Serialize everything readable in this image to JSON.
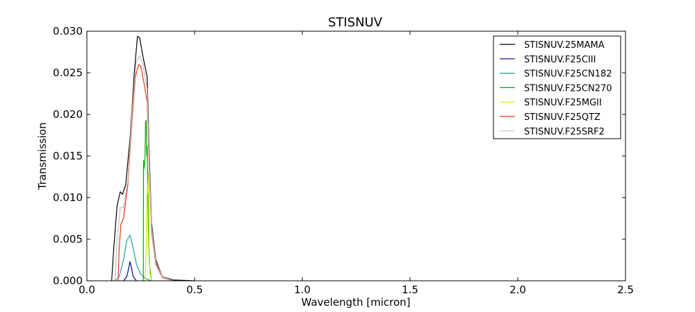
{
  "chart_data": {
    "type": "line",
    "title": "STISNUV",
    "xlabel": "Wavelength [micron]",
    "ylabel": "Transmission",
    "xlim": [
      0.0,
      2.5
    ],
    "ylim": [
      0.0,
      0.03
    ],
    "x_ticks": [
      "0.0",
      "0.5",
      "1.0",
      "1.5",
      "2.0",
      "2.5"
    ],
    "y_ticks": [
      "0.000",
      "0.005",
      "0.010",
      "0.015",
      "0.020",
      "0.025",
      "0.030"
    ],
    "grid": false,
    "legend_position": "top-right",
    "series": [
      {
        "name": "STISNUV.25MAMA",
        "color": "#000000",
        "points": [
          [
            0.115,
            0
          ],
          [
            0.125,
            0.004
          ],
          [
            0.14,
            0.009
          ],
          [
            0.155,
            0.0107
          ],
          [
            0.165,
            0.0104
          ],
          [
            0.18,
            0.0115
          ],
          [
            0.2,
            0.017
          ],
          [
            0.22,
            0.025
          ],
          [
            0.235,
            0.0294
          ],
          [
            0.245,
            0.0292
          ],
          [
            0.26,
            0.027
          ],
          [
            0.28,
            0.0245
          ],
          [
            0.29,
            0.015
          ],
          [
            0.3,
            0.007
          ],
          [
            0.32,
            0.0025
          ],
          [
            0.35,
            0.0005
          ],
          [
            0.4,
            0.0001
          ],
          [
            0.5,
            0
          ]
        ]
      },
      {
        "name": "STISNUV.F25CIII",
        "color": "#000099",
        "points": [
          [
            0.17,
            0
          ],
          [
            0.185,
            0.0005
          ],
          [
            0.195,
            0.0016
          ],
          [
            0.2,
            0.0023
          ],
          [
            0.205,
            0.0018
          ],
          [
            0.215,
            0.0005
          ],
          [
            0.23,
            0
          ]
        ]
      },
      {
        "name": "STISNUV.F25CN182",
        "color": "#1aa3a3",
        "points": [
          [
            0.13,
            0
          ],
          [
            0.15,
            0.0005
          ],
          [
            0.17,
            0.0025
          ],
          [
            0.185,
            0.0048
          ],
          [
            0.2,
            0.0055
          ],
          [
            0.21,
            0.0045
          ],
          [
            0.23,
            0.002
          ],
          [
            0.25,
            0.0008
          ],
          [
            0.27,
            0.0003
          ],
          [
            0.3,
            0
          ]
        ]
      },
      {
        "name": "STISNUV.F25CN270",
        "color": "#00aa00",
        "points": [
          [
            0.258,
            0
          ],
          [
            0.262,
            0
          ],
          [
            0.263,
            0.0145
          ],
          [
            0.266,
            0.0135
          ],
          [
            0.27,
            0.0148
          ],
          [
            0.272,
            0.019
          ],
          [
            0.275,
            0.0193
          ],
          [
            0.278,
            0.015
          ],
          [
            0.28,
            0.0162
          ],
          [
            0.282,
            0.013
          ],
          [
            0.285,
            0.007
          ],
          [
            0.29,
            0.002
          ],
          [
            0.3,
            0
          ]
        ]
      },
      {
        "name": "STISNUV.F25MGII",
        "color": "#ccee00",
        "points": [
          [
            0.27,
            0
          ],
          [
            0.276,
            0.004
          ],
          [
            0.28,
            0.011
          ],
          [
            0.283,
            0.0105
          ],
          [
            0.286,
            0.013
          ],
          [
            0.289,
            0.0045
          ],
          [
            0.292,
            0.001
          ],
          [
            0.3,
            0
          ]
        ]
      },
      {
        "name": "STISNUV.F25QTZ",
        "color": "#e83a1a",
        "points": [
          [
            0.145,
            0
          ],
          [
            0.15,
            0.004
          ],
          [
            0.158,
            0.0068
          ],
          [
            0.17,
            0.0075
          ],
          [
            0.19,
            0.0115
          ],
          [
            0.21,
            0.0195
          ],
          [
            0.225,
            0.0245
          ],
          [
            0.24,
            0.026
          ],
          [
            0.25,
            0.0258
          ],
          [
            0.265,
            0.0238
          ],
          [
            0.28,
            0.0215
          ],
          [
            0.29,
            0.013
          ],
          [
            0.3,
            0.006
          ],
          [
            0.32,
            0.002
          ],
          [
            0.35,
            0.0004
          ],
          [
            0.4,
            0
          ]
        ]
      },
      {
        "name": "STISNUV.F25SRF2",
        "color": "#c0c0c0",
        "points": [
          [
            0.13,
            0
          ],
          [
            0.14,
            0.005
          ],
          [
            0.155,
            0.0088
          ],
          [
            0.17,
            0.0088
          ],
          [
            0.19,
            0.012
          ],
          [
            0.21,
            0.0205
          ],
          [
            0.228,
            0.0262
          ],
          [
            0.245,
            0.027
          ],
          [
            0.26,
            0.026
          ],
          [
            0.28,
            0.023
          ],
          [
            0.29,
            0.014
          ],
          [
            0.3,
            0.0065
          ],
          [
            0.32,
            0.0022
          ],
          [
            0.35,
            0.0005
          ],
          [
            0.4,
            0
          ]
        ]
      }
    ]
  }
}
